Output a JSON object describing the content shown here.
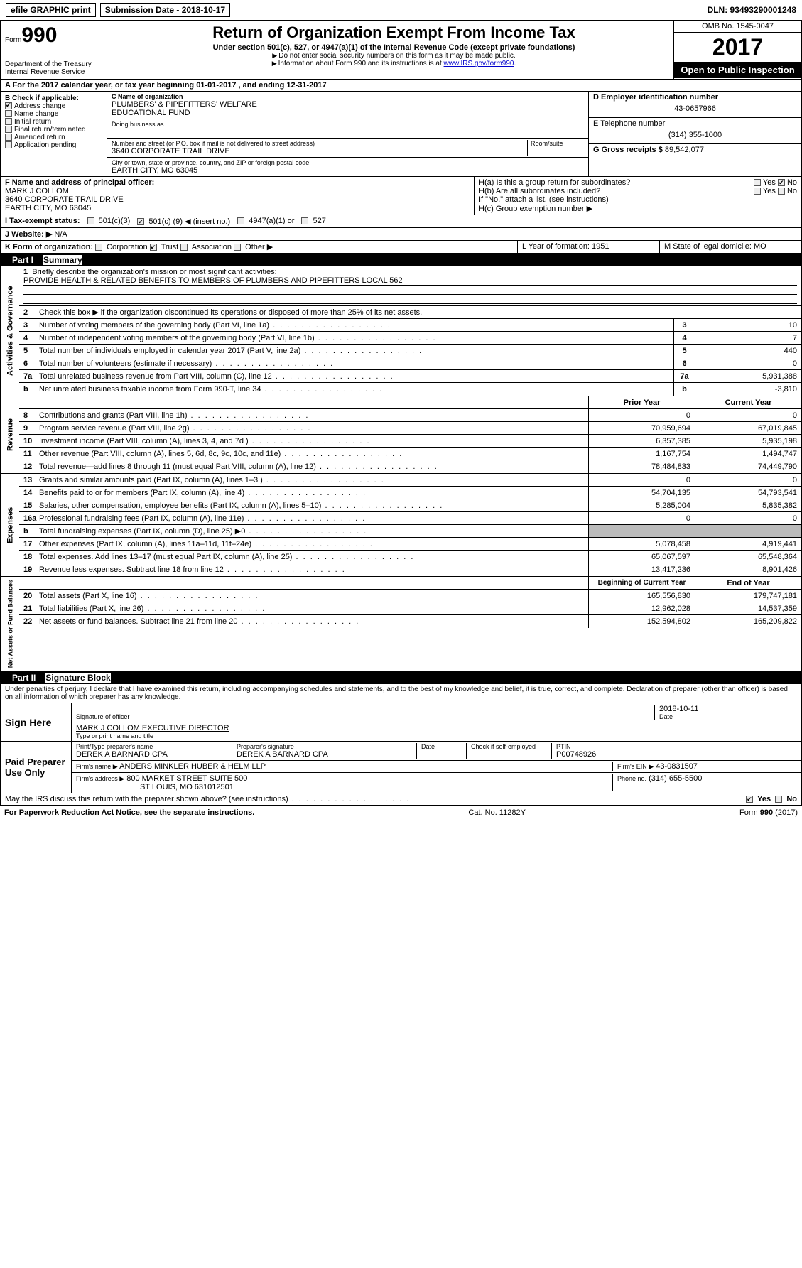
{
  "topbar": {
    "efile": "efile GRAPHIC print",
    "submission_label": "Submission Date - 2018-10-17",
    "dln": "DLN: 93493290001248"
  },
  "header": {
    "form_prefix": "Form",
    "form_number": "990",
    "dept": "Department of the Treasury",
    "irs": "Internal Revenue Service",
    "title": "Return of Organization Exempt From Income Tax",
    "subtitle": "Under section 501(c), 527, or 4947(a)(1) of the Internal Revenue Code (except private foundations)",
    "note1": "Do not enter social security numbers on this form as it may be made public.",
    "note2_pre": "Information about Form 990 and its instructions is at ",
    "note2_link": "www.IRS.gov/form990",
    "omb": "OMB No. 1545-0047",
    "year": "2017",
    "open_public": "Open to Public Inspection"
  },
  "sectionA": "A   For the 2017 calendar year, or tax year beginning 01-01-2017    , and ending 12-31-2017",
  "colB": {
    "title": "B Check if applicable:",
    "items": [
      "Address change",
      "Name change",
      "Initial return",
      "Final return/terminated",
      "Amended return",
      "Application pending"
    ],
    "checked_index": 0
  },
  "colC": {
    "name_label": "C Name of organization",
    "name1": "PLUMBERS' & PIPEFITTERS' WELFARE",
    "name2": "EDUCATIONAL FUND",
    "dba_label": "Doing business as",
    "street_label": "Number and street (or P.O. box if mail is not delivered to street address)",
    "room_label": "Room/suite",
    "street": "3640 CORPORATE TRAIL DRIVE",
    "city_label": "City or town, state or province, country, and ZIP or foreign postal code",
    "city": "EARTH CITY, MO  63045"
  },
  "colD": {
    "ein_label": "D Employer identification number",
    "ein": "43-0657966",
    "phone_label": "E Telephone number",
    "phone": "(314) 355-1000",
    "gross_label": "G Gross receipts $",
    "gross": "89,542,077"
  },
  "rowF": {
    "label": "F  Name and address of principal officer:",
    "name": "MARK J COLLOM",
    "addr1": "3640 CORPORATE TRAIL DRIVE",
    "addr2": "EARTH CITY, MO  63045",
    "ha": "H(a)  Is this a group return for subordinates?",
    "hb": "H(b)  Are all subordinates included?",
    "hnote": "If \"No,\" attach a list. (see instructions)",
    "hc": "H(c)  Group exemption number ▶"
  },
  "rowI": {
    "label": "I   Tax-exempt status:",
    "c3": "501(c)(3)",
    "c": "501(c) (",
    "cnum": "9",
    "cinsert": ") ◀ (insert no.)",
    "a1": "4947(a)(1) or",
    "s527": "527"
  },
  "rowJ": {
    "label": "J   Website: ▶",
    "val": "N/A"
  },
  "rowK": {
    "label": "K Form of organization:",
    "opts": [
      "Corporation",
      "Trust",
      "Association",
      "Other ▶"
    ],
    "checked": 1,
    "L": "L Year of formation: 1951",
    "M": "M State of legal domicile: MO"
  },
  "part1": {
    "hdr": "Part I",
    "title": "Summary"
  },
  "gov": {
    "tab": "Activities & Governance",
    "l1": "Briefly describe the organization's mission or most significant activities:",
    "l1v": "PROVIDE HEALTH & RELATED BENEFITS TO MEMBERS OF PLUMBERS AND PIPEFITTERS LOCAL 562",
    "l2": "Check this box ▶        if the organization discontinued its operations or disposed of more than 25% of its net assets.",
    "rows": [
      {
        "n": "3",
        "d": "Number of voting members of the governing body (Part VI, line 1a)",
        "v": "10"
      },
      {
        "n": "4",
        "d": "Number of independent voting members of the governing body (Part VI, line 1b)",
        "v": "7"
      },
      {
        "n": "5",
        "d": "Total number of individuals employed in calendar year 2017 (Part V, line 2a)",
        "v": "440"
      },
      {
        "n": "6",
        "d": "Total number of volunteers (estimate if necessary)",
        "v": "0"
      },
      {
        "n": "7a",
        "d": "Total unrelated business revenue from Part VIII, column (C), line 12",
        "v": "5,931,388"
      },
      {
        "n": "b",
        "d": "Net unrelated business taxable income from Form 990-T, line 34",
        "v": "-3,810"
      }
    ]
  },
  "rev": {
    "tab": "Revenue",
    "hdr_prior": "Prior Year",
    "hdr_curr": "Current Year",
    "rows": [
      {
        "n": "8",
        "d": "Contributions and grants (Part VIII, line 1h)",
        "p": "0",
        "c": "0"
      },
      {
        "n": "9",
        "d": "Program service revenue (Part VIII, line 2g)",
        "p": "70,959,694",
        "c": "67,019,845"
      },
      {
        "n": "10",
        "d": "Investment income (Part VIII, column (A), lines 3, 4, and 7d )",
        "p": "6,357,385",
        "c": "5,935,198"
      },
      {
        "n": "11",
        "d": "Other revenue (Part VIII, column (A), lines 5, 6d, 8c, 9c, 10c, and 11e)",
        "p": "1,167,754",
        "c": "1,494,747"
      },
      {
        "n": "12",
        "d": "Total revenue—add lines 8 through 11 (must equal Part VIII, column (A), line 12)",
        "p": "78,484,833",
        "c": "74,449,790"
      }
    ]
  },
  "exp": {
    "tab": "Expenses",
    "rows": [
      {
        "n": "13",
        "d": "Grants and similar amounts paid (Part IX, column (A), lines 1–3 )",
        "p": "0",
        "c": "0"
      },
      {
        "n": "14",
        "d": "Benefits paid to or for members (Part IX, column (A), line 4)",
        "p": "54,704,135",
        "c": "54,793,541"
      },
      {
        "n": "15",
        "d": "Salaries, other compensation, employee benefits (Part IX, column (A), lines 5–10)",
        "p": "5,285,004",
        "c": "5,835,382"
      },
      {
        "n": "16a",
        "d": "Professional fundraising fees (Part IX, column (A), line 11e)",
        "p": "0",
        "c": "0"
      },
      {
        "n": "b",
        "d": "Total fundraising expenses (Part IX, column (D), line 25) ▶0",
        "p": "",
        "c": "",
        "grey": true
      },
      {
        "n": "17",
        "d": "Other expenses (Part IX, column (A), lines 11a–11d, 11f–24e)",
        "p": "5,078,458",
        "c": "4,919,441"
      },
      {
        "n": "18",
        "d": "Total expenses. Add lines 13–17 (must equal Part IX, column (A), line 25)",
        "p": "65,067,597",
        "c": "65,548,364"
      },
      {
        "n": "19",
        "d": "Revenue less expenses. Subtract line 18 from line 12",
        "p": "13,417,236",
        "c": "8,901,426"
      }
    ]
  },
  "net": {
    "tab": "Net Assets or Fund Balances",
    "hdr_beg": "Beginning of Current Year",
    "hdr_end": "End of Year",
    "rows": [
      {
        "n": "20",
        "d": "Total assets (Part X, line 16)",
        "p": "165,556,830",
        "c": "179,747,181"
      },
      {
        "n": "21",
        "d": "Total liabilities (Part X, line 26)",
        "p": "12,962,028",
        "c": "14,537,359"
      },
      {
        "n": "22",
        "d": "Net assets or fund balances. Subtract line 21 from line 20",
        "p": "152,594,802",
        "c": "165,209,822"
      }
    ]
  },
  "part2": {
    "hdr": "Part II",
    "title": "Signature Block"
  },
  "perjury": "Under penalties of perjury, I declare that I have examined this return, including accompanying schedules and statements, and to the best of my knowledge and belief, it is true, correct, and complete. Declaration of preparer (other than officer) is based on all information of which preparer has any knowledge.",
  "sign": {
    "here": "Sign Here",
    "sig_label": "Signature of officer",
    "date": "2018-10-11",
    "date_label": "Date",
    "name": "MARK J COLLOM  EXECUTIVE DIRECTOR",
    "name_label": "Type or print name and title"
  },
  "paid": {
    "here": "Paid Preparer Use Only",
    "prep_name_label": "Print/Type preparer's name",
    "prep_name": "DEREK A BARNARD CPA",
    "prep_sig_label": "Preparer's signature",
    "prep_sig": "DEREK A BARNARD CPA",
    "date_label": "Date",
    "check_label": "Check        if self-employed",
    "ptin_label": "PTIN",
    "ptin": "P00748926",
    "firm_name_label": "Firm's name     ▶",
    "firm_name": "ANDERS MINKLER HUBER & HELM LLP",
    "firm_ein_label": "Firm's EIN ▶",
    "firm_ein": "43-0831507",
    "firm_addr_label": "Firm's address ▶",
    "firm_addr1": "800 MARKET STREET SUITE 500",
    "firm_addr2": "ST LOUIS, MO  631012501",
    "phone_label": "Phone no.",
    "phone": "(314) 655-5500"
  },
  "discuss": "May the IRS discuss this return with the preparer shown above? (see instructions)",
  "footer": {
    "pra": "For Paperwork Reduction Act Notice, see the separate instructions.",
    "cat": "Cat. No. 11282Y",
    "form": "Form 990 (2017)"
  },
  "yes": "Yes",
  "no": "No"
}
